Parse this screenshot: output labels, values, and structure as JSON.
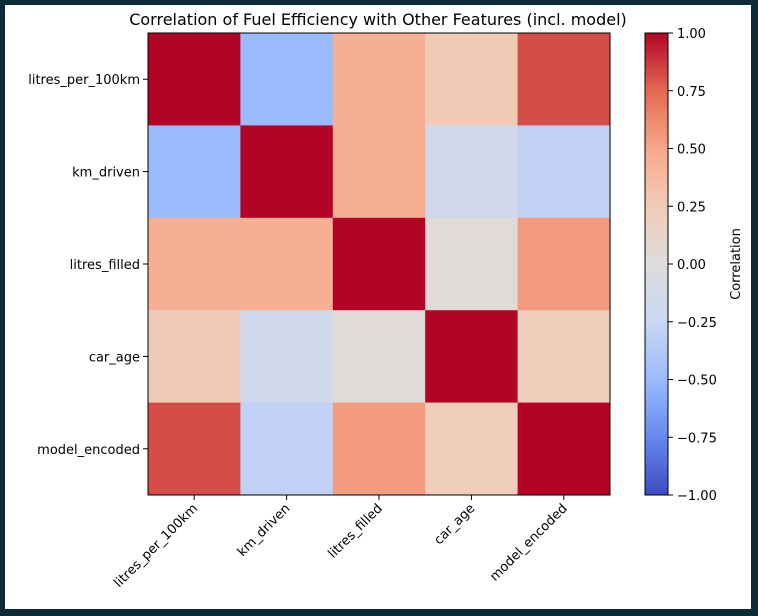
{
  "chart_data": {
    "type": "heatmap",
    "title": "Correlation of Fuel Efficiency with Other Features (incl. model)",
    "rows": [
      "litres_per_100km",
      "km_driven",
      "litres_filled",
      "car_age",
      "model_encoded"
    ],
    "columns": [
      "litres_per_100km",
      "km_driven",
      "litres_filled",
      "car_age",
      "model_encoded"
    ],
    "values": [
      [
        1.0,
        -0.5,
        0.45,
        0.25,
        0.82
      ],
      [
        -0.5,
        1.0,
        0.45,
        -0.18,
        -0.3
      ],
      [
        0.45,
        0.45,
        1.0,
        0.03,
        0.55
      ],
      [
        0.25,
        -0.18,
        0.03,
        1.0,
        0.22
      ],
      [
        0.82,
        -0.3,
        0.55,
        0.22,
        1.0
      ]
    ],
    "colorbar": {
      "label": "Correlation",
      "vmin": -1.0,
      "vmax": 1.0,
      "ticks": [
        "1.00",
        "0.75",
        "0.50",
        "0.25",
        "0.00",
        "−0.25",
        "−0.50",
        "−0.75",
        "−1.00"
      ],
      "colormap": "coolwarm",
      "colormap_stops": [
        "#3b4cc0",
        "#6788ee",
        "#9abbff",
        "#c9d7f0",
        "#dddcdc",
        "#f2cbb7",
        "#f7a889",
        "#e26952",
        "#b40426"
      ]
    },
    "grid": false
  }
}
